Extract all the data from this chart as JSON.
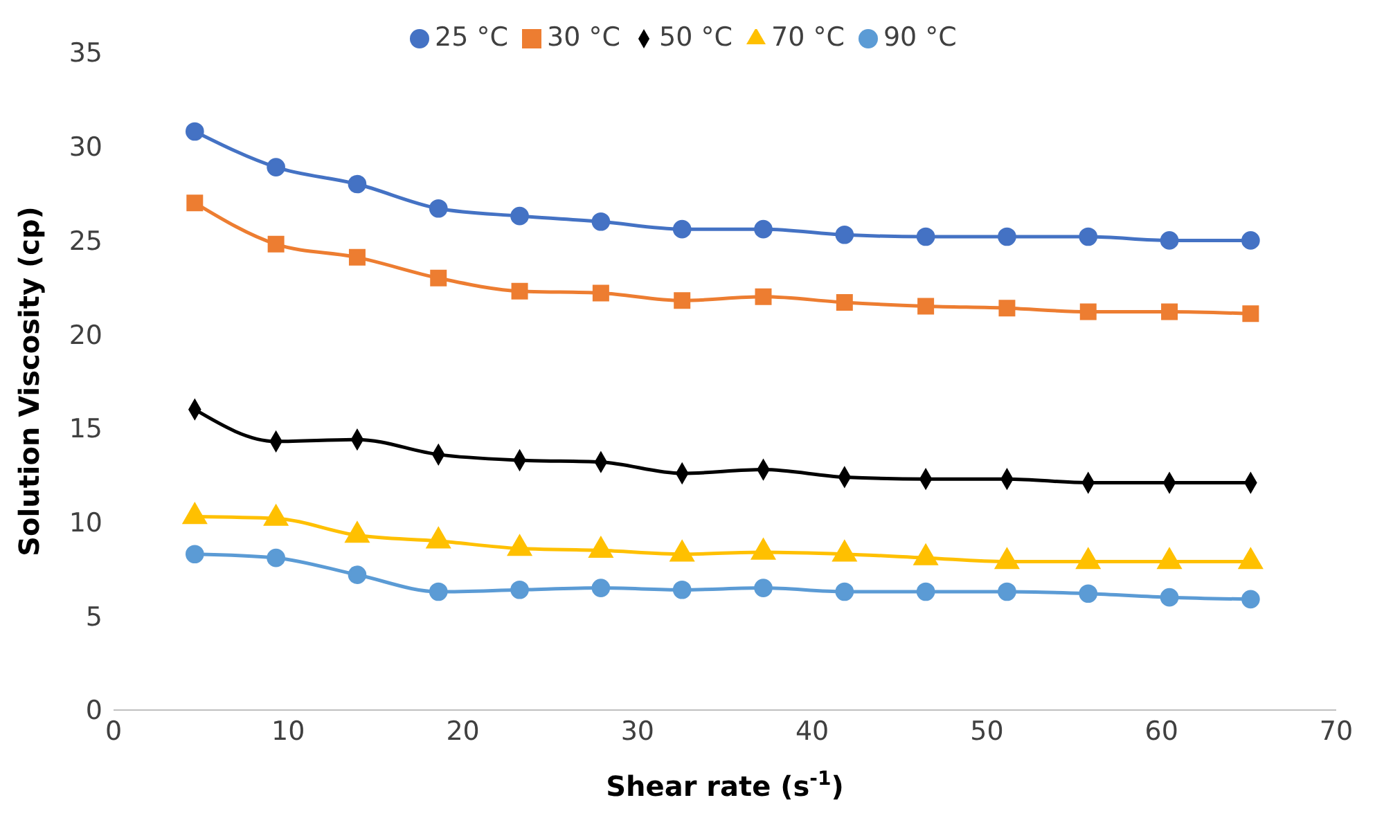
{
  "chart_data": {
    "type": "line",
    "xlabel": "Shear rate (s$^{-1}$)",
    "ylabel": "Solution Viscosity (cp)",
    "x": [
      4.65,
      9.3,
      13.95,
      18.6,
      23.25,
      27.9,
      32.55,
      37.2,
      41.85,
      46.5,
      51.15,
      55.8,
      60.45,
      65.1
    ],
    "series": [
      {
        "name": "25 °C",
        "color": "#4472c4",
        "marker": "circle",
        "values": [
          30.8,
          28.9,
          28.0,
          26.7,
          26.3,
          26.0,
          25.6,
          25.6,
          25.3,
          25.2,
          25.2,
          25.2,
          25.0,
          25.0
        ]
      },
      {
        "name": "30 °C",
        "color": "#ed7d31",
        "marker": "square",
        "values": [
          27.0,
          24.8,
          24.1,
          23.0,
          22.3,
          22.2,
          21.8,
          22.0,
          21.7,
          21.5,
          21.4,
          21.2,
          21.2,
          21.1
        ]
      },
      {
        "name": "50 °C",
        "color": "#000000",
        "marker": "diamond",
        "values": [
          16.0,
          14.3,
          14.4,
          13.6,
          13.3,
          13.2,
          12.6,
          12.8,
          12.4,
          12.3,
          12.3,
          12.1,
          12.1,
          12.1
        ]
      },
      {
        "name": "70 °C",
        "color": "#ffc000",
        "marker": "triangle",
        "values": [
          10.3,
          10.2,
          9.3,
          9.0,
          8.6,
          8.5,
          8.3,
          8.4,
          8.3,
          8.1,
          7.9,
          7.9,
          7.9,
          7.9
        ]
      },
      {
        "name": "90 °C",
        "color": "#5b9bd5",
        "marker": "circle",
        "values": [
          8.3,
          8.1,
          7.2,
          6.3,
          6.4,
          6.5,
          6.4,
          6.5,
          6.3,
          6.3,
          6.3,
          6.2,
          6.0,
          5.9
        ]
      }
    ],
    "xlim": [
      0,
      70
    ],
    "xticks": [
      0,
      10,
      20,
      30,
      40,
      50,
      60,
      70
    ],
    "ylim": [
      0,
      35
    ],
    "yticks": [
      0,
      5,
      10,
      15,
      20,
      25,
      30,
      35
    ],
    "grid": false,
    "legend": "top",
    "line_style": "solid"
  }
}
